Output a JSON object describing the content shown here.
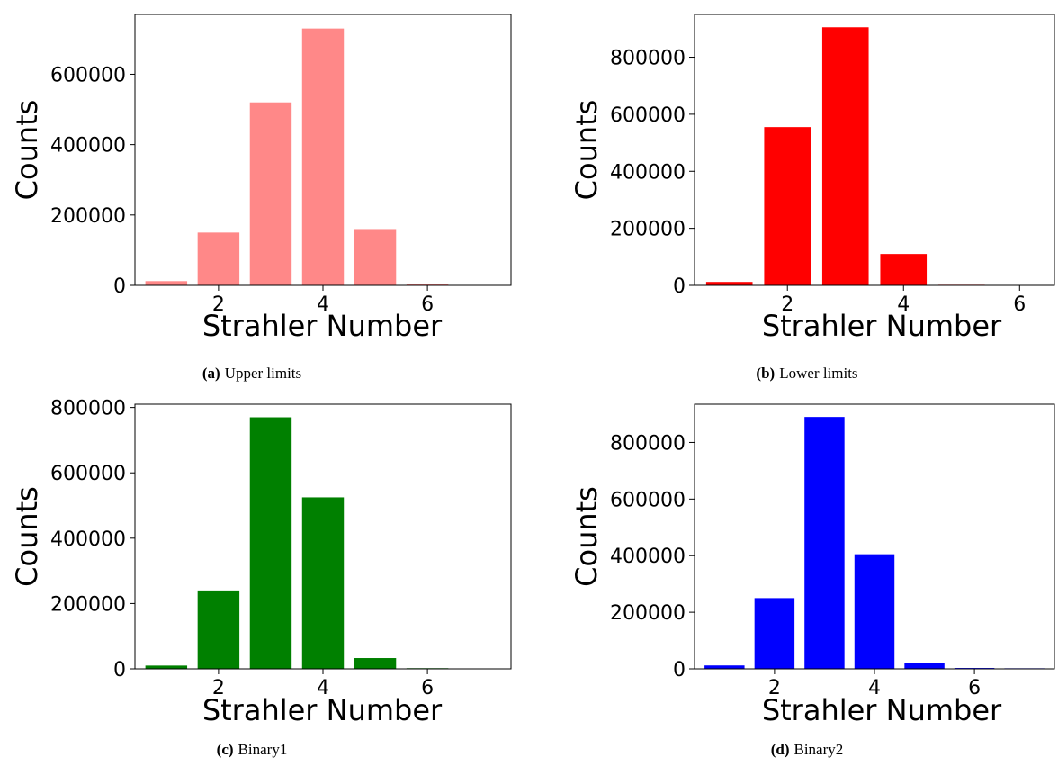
{
  "chart_data": [
    {
      "type": "bar",
      "panel": "a",
      "caption_tag": "(a)",
      "caption_text": "Upper limits",
      "title": "",
      "xlabel": "Strahler Number",
      "ylabel": "Counts",
      "x": [
        1,
        2,
        3,
        4,
        5,
        6,
        7
      ],
      "values": [
        12000,
        150000,
        520000,
        730000,
        160000,
        3000,
        1000
      ],
      "xlim": [
        0.4,
        7.6
      ],
      "ylim": [
        0,
        770000
      ],
      "xticks": [
        "2",
        "4",
        "6"
      ],
      "yticks": [
        "0",
        "200000",
        "400000",
        "600000"
      ],
      "color": "#ff8888",
      "grid": false
    },
    {
      "type": "bar",
      "panel": "b",
      "caption_tag": "(b)",
      "caption_text": "Lower limits",
      "title": "",
      "xlabel": "Strahler Number",
      "ylabel": "Counts",
      "x": [
        1,
        2,
        3,
        4,
        5,
        6
      ],
      "values": [
        12000,
        555000,
        905000,
        110000,
        2000,
        1000
      ],
      "xlim": [
        0.4,
        6.6
      ],
      "ylim": [
        0,
        950000
      ],
      "xticks": [
        "2",
        "4",
        "6"
      ],
      "yticks": [
        "0",
        "200000",
        "400000",
        "600000",
        "800000"
      ],
      "color": "#ff0000",
      "grid": false
    },
    {
      "type": "bar",
      "panel": "c",
      "caption_tag": "(c)",
      "caption_text": "Binary1",
      "title": "",
      "xlabel": "Strahler Number",
      "ylabel": "Counts",
      "x": [
        1,
        2,
        3,
        4,
        5,
        6,
        7
      ],
      "values": [
        10000,
        240000,
        770000,
        525000,
        33000,
        2000,
        1000
      ],
      "xlim": [
        0.4,
        7.6
      ],
      "ylim": [
        0,
        810000
      ],
      "xticks": [
        "2",
        "4",
        "6"
      ],
      "yticks": [
        "0",
        "200000",
        "400000",
        "600000",
        "800000"
      ],
      "color": "#008000",
      "grid": false
    },
    {
      "type": "bar",
      "panel": "d",
      "caption_tag": "(d)",
      "caption_text": "Binary2",
      "title": "",
      "xlabel": "Strahler Number",
      "ylabel": "Counts",
      "x": [
        1,
        2,
        3,
        4,
        5,
        6,
        7
      ],
      "values": [
        12000,
        250000,
        890000,
        405000,
        20000,
        3000,
        2000
      ],
      "xlim": [
        0.4,
        7.6
      ],
      "ylim": [
        0,
        935000
      ],
      "xticks": [
        "2",
        "4",
        "6"
      ],
      "yticks": [
        "0",
        "200000",
        "400000",
        "600000",
        "800000"
      ],
      "color": "#0000ff",
      "grid": false
    }
  ]
}
